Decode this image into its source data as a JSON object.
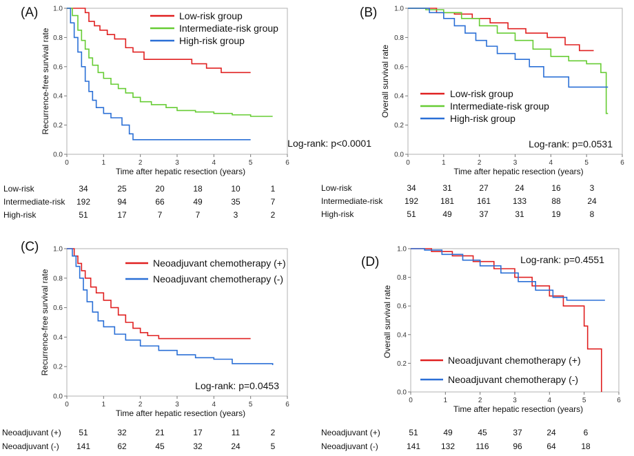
{
  "colors": {
    "low": "#e02020",
    "intermediate": "#66cc33",
    "high": "#2a6fd6",
    "neo_pos": "#e02020",
    "neo_neg": "#2a6fd6"
  },
  "chart_data": [
    {
      "id": "A",
      "panel_label": "(A)",
      "type": "line",
      "step": true,
      "xlabel": "Time after hepatic resection (years)",
      "ylabel": "Recurrence-free survival rate",
      "xlim": [
        0,
        6
      ],
      "ylim": [
        0,
        1
      ],
      "xticks": [
        "0",
        "1",
        "2",
        "3",
        "4",
        "5",
        "6"
      ],
      "yticks": [
        "0.0",
        "0.2",
        "0.4",
        "0.6",
        "0.8",
        "1.0"
      ],
      "legend_position": "top-center",
      "grid": false,
      "annotation": "Log-rank: p<0.0001",
      "series": [
        {
          "name": "Low-risk group",
          "color": "#e02020",
          "x": [
            0,
            0.5,
            0.6,
            0.75,
            0.9,
            1.1,
            1.3,
            1.6,
            1.8,
            2.1,
            3.4,
            3.8,
            4.2,
            5
          ],
          "y": [
            1,
            0.97,
            0.91,
            0.88,
            0.85,
            0.82,
            0.79,
            0.73,
            0.7,
            0.65,
            0.62,
            0.59,
            0.56,
            0.56
          ]
        },
        {
          "name": "Intermediate-risk group",
          "color": "#66cc33",
          "x": [
            0,
            0.15,
            0.3,
            0.4,
            0.5,
            0.6,
            0.7,
            0.85,
            1.0,
            1.2,
            1.4,
            1.6,
            1.8,
            2.0,
            2.3,
            2.7,
            3.0,
            3.5,
            4.0,
            4.5,
            5.0,
            5.6
          ],
          "y": [
            1,
            0.95,
            0.85,
            0.78,
            0.72,
            0.66,
            0.61,
            0.56,
            0.52,
            0.48,
            0.45,
            0.42,
            0.39,
            0.36,
            0.34,
            0.32,
            0.3,
            0.29,
            0.28,
            0.27,
            0.26,
            0.26
          ]
        },
        {
          "name": "High-risk group",
          "color": "#2a6fd6",
          "x": [
            0,
            0.1,
            0.2,
            0.3,
            0.4,
            0.5,
            0.6,
            0.7,
            0.8,
            1.0,
            1.2,
            1.5,
            1.7,
            1.8,
            2.5,
            5
          ],
          "y": [
            1,
            0.9,
            0.8,
            0.7,
            0.6,
            0.5,
            0.43,
            0.37,
            0.32,
            0.28,
            0.25,
            0.2,
            0.14,
            0.1,
            0.1,
            0.1
          ]
        }
      ],
      "risk_table": {
        "times": [
          0,
          1,
          2,
          3,
          4,
          5
        ],
        "rows": [
          {
            "label": "Low-risk",
            "values": [
              "34",
              "25",
              "20",
              "18",
              "10",
              "1"
            ]
          },
          {
            "label": "Intermediate-risk",
            "values": [
              "192",
              "94",
              "66",
              "49",
              "35",
              "7"
            ]
          },
          {
            "label": "High-risk",
            "values": [
              "51",
              "17",
              "7",
              "7",
              "3",
              "2"
            ]
          }
        ]
      }
    },
    {
      "id": "B",
      "panel_label": "(B)",
      "type": "line",
      "step": true,
      "xlabel": "Time after hepatic resection (years)",
      "ylabel": "Overall survival rate",
      "xlim": [
        0,
        6
      ],
      "ylim": [
        0,
        1
      ],
      "xticks": [
        "0",
        "1",
        "2",
        "3",
        "4",
        "5",
        "6"
      ],
      "yticks": [
        "0.0",
        "0.2",
        "0.4",
        "0.6",
        "0.8",
        "1.0"
      ],
      "legend_position": "center-left",
      "grid": false,
      "annotation": "Log-rank: p=0.0531",
      "series": [
        {
          "name": "Low-risk group",
          "color": "#e02020",
          "x": [
            0,
            0.8,
            1.3,
            1.8,
            2.3,
            2.8,
            3.3,
            3.9,
            4.4,
            4.8,
            5.2
          ],
          "y": [
            1,
            0.97,
            0.96,
            0.93,
            0.9,
            0.86,
            0.83,
            0.8,
            0.75,
            0.71,
            0.71
          ]
        },
        {
          "name": "Intermediate-risk group",
          "color": "#66cc33",
          "x": [
            0,
            0.5,
            1.0,
            1.5,
            2.0,
            2.5,
            3.0,
            3.5,
            4.0,
            4.5,
            5.0,
            5.4,
            5.55,
            5.6
          ],
          "y": [
            1,
            0.99,
            0.97,
            0.93,
            0.88,
            0.83,
            0.78,
            0.72,
            0.67,
            0.64,
            0.62,
            0.56,
            0.28,
            0.28
          ]
        },
        {
          "name": "High-risk group",
          "color": "#2a6fd6",
          "x": [
            0,
            0.6,
            1.0,
            1.3,
            1.6,
            1.9,
            2.2,
            2.5,
            3.0,
            3.4,
            3.8,
            4.5,
            5.6
          ],
          "y": [
            1,
            0.97,
            0.93,
            0.88,
            0.83,
            0.78,
            0.74,
            0.69,
            0.65,
            0.6,
            0.53,
            0.46,
            0.46
          ]
        }
      ],
      "risk_table": {
        "times": [
          0,
          1,
          2,
          3,
          4,
          5
        ],
        "rows": [
          {
            "label": "Low-risk",
            "values": [
              "34",
              "31",
              "27",
              "24",
              "16",
              "3"
            ]
          },
          {
            "label": "Intermediate-risk",
            "values": [
              "192",
              "181",
              "161",
              "133",
              "88",
              "24"
            ]
          },
          {
            "label": "High-risk",
            "values": [
              "51",
              "49",
              "37",
              "31",
              "19",
              "8"
            ]
          }
        ]
      }
    },
    {
      "id": "C",
      "panel_label": "(C)",
      "type": "line",
      "step": true,
      "xlabel": "Time after hepatic resection (years)",
      "ylabel": "Recurrence-free survival rate",
      "xlim": [
        0,
        6
      ],
      "ylim": [
        0,
        1
      ],
      "xticks": [
        "0",
        "1",
        "2",
        "3",
        "4",
        "5",
        "6"
      ],
      "yticks": [
        "0.0",
        "0.2",
        "0.4",
        "0.6",
        "0.8",
        "1.0"
      ],
      "legend_position": "top-center",
      "grid": false,
      "annotation": "Log-rank: p=0.0453",
      "series": [
        {
          "name": "Neoadjuvant chemotherapy (+)",
          "color": "#e02020",
          "x": [
            0,
            0.2,
            0.3,
            0.4,
            0.5,
            0.65,
            0.8,
            1.0,
            1.2,
            1.4,
            1.6,
            1.8,
            2.0,
            2.2,
            2.5,
            5
          ],
          "y": [
            1,
            0.95,
            0.9,
            0.85,
            0.8,
            0.74,
            0.7,
            0.65,
            0.6,
            0.55,
            0.5,
            0.46,
            0.43,
            0.41,
            0.39,
            0.39
          ]
        },
        {
          "name": "Neoadjuvant chemotherapy (-)",
          "color": "#2a6fd6",
          "x": [
            0,
            0.15,
            0.25,
            0.35,
            0.45,
            0.55,
            0.7,
            0.85,
            1.0,
            1.3,
            1.6,
            2.0,
            2.5,
            3.0,
            3.5,
            4.0,
            4.5,
            5.6
          ],
          "y": [
            1,
            0.95,
            0.88,
            0.8,
            0.72,
            0.64,
            0.57,
            0.51,
            0.47,
            0.42,
            0.38,
            0.34,
            0.31,
            0.28,
            0.26,
            0.25,
            0.22,
            0.21
          ]
        }
      ],
      "risk_table": {
        "times": [
          0,
          1,
          2,
          3,
          4,
          5
        ],
        "rows": [
          {
            "label": "Neoadjuvant (+)",
            "values": [
              "51",
              "32",
              "21",
              "17",
              "11",
              "2"
            ]
          },
          {
            "label": "Neoadjuvant (-)",
            "values": [
              "141",
              "62",
              "45",
              "32",
              "24",
              "5"
            ]
          }
        ]
      }
    },
    {
      "id": "D",
      "panel_label": "(D)",
      "type": "line",
      "step": true,
      "xlabel": "Time after hepatic resection (years)",
      "ylabel": "Overall survival rate",
      "xlim": [
        0,
        6
      ],
      "ylim": [
        0,
        1
      ],
      "xticks": [
        "0",
        "1",
        "2",
        "3",
        "4",
        "5",
        "6"
      ],
      "yticks": [
        "0.0",
        "0.2",
        "0.4",
        "0.6",
        "0.8",
        "1.0"
      ],
      "legend_position": "bottom-center",
      "grid": false,
      "annotation": "Log-rank: p=0.4551",
      "series": [
        {
          "name": "Neoadjuvant chemotherapy (+)",
          "color": "#e02020",
          "x": [
            0,
            0.6,
            1.2,
            1.8,
            2.4,
            3.0,
            3.5,
            4.0,
            4.4,
            5.0,
            5.1,
            5.5
          ],
          "y": [
            1,
            0.98,
            0.95,
            0.91,
            0.86,
            0.8,
            0.74,
            0.67,
            0.6,
            0.46,
            0.3,
            0.0
          ]
        },
        {
          "name": "Neoadjuvant chemotherapy (-)",
          "color": "#2a6fd6",
          "x": [
            0,
            0.4,
            0.9,
            1.5,
            2.0,
            2.6,
            3.1,
            3.6,
            4.1,
            4.5,
            5.6
          ],
          "y": [
            1,
            0.99,
            0.96,
            0.92,
            0.88,
            0.83,
            0.77,
            0.71,
            0.66,
            0.64,
            0.64
          ]
        }
      ],
      "risk_table": {
        "times": [
          0,
          1,
          2,
          3,
          4,
          5
        ],
        "rows": [
          {
            "label": "Neoadjuvant (+)",
            "values": [
              "51",
              "49",
              "45",
              "37",
              "24",
              "6"
            ]
          },
          {
            "label": "Neoadjuvant (-)",
            "values": [
              "141",
              "132",
              "116",
              "96",
              "64",
              "18"
            ]
          }
        ]
      }
    }
  ]
}
